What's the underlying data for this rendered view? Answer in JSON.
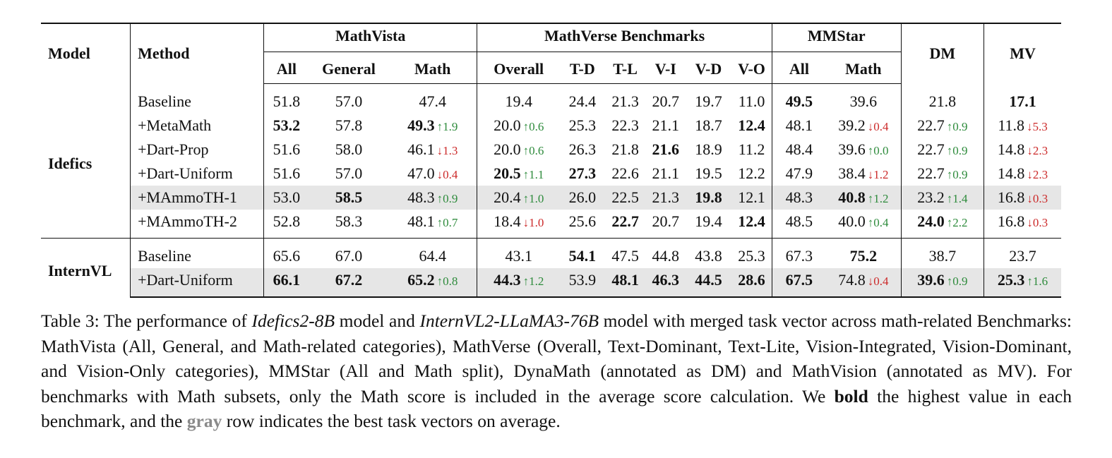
{
  "table": {
    "header": {
      "model": "Model",
      "method": "Method",
      "groups": [
        {
          "name": "MathVista",
          "cols": [
            "All",
            "General",
            "Math"
          ]
        },
        {
          "name": "MathVerse Benchmarks",
          "cols": [
            "Overall",
            "T-D",
            "T-L",
            "V-I",
            "V-D",
            "V-O"
          ]
        },
        {
          "name": "MMStar",
          "cols": [
            "All",
            "Math"
          ]
        },
        {
          "name": "DM",
          "cols": [
            ""
          ]
        },
        {
          "name": "MV",
          "cols": [
            ""
          ]
        }
      ]
    },
    "groups": [
      {
        "model": "Idefics",
        "rows": [
          {
            "method": "Baseline",
            "gray": false,
            "cells": [
              {
                "v": "51.8"
              },
              {
                "v": "57.0"
              },
              {
                "v": "47.4"
              },
              {
                "v": "19.4"
              },
              {
                "v": "24.4"
              },
              {
                "v": "21.3"
              },
              {
                "v": "20.7"
              },
              {
                "v": "19.7"
              },
              {
                "v": "11.0"
              },
              {
                "v": "49.5",
                "b": true
              },
              {
                "v": "39.6"
              },
              {
                "v": "21.8"
              },
              {
                "v": "17.1",
                "b": true
              }
            ]
          },
          {
            "method": "+MetaMath",
            "gray": false,
            "cells": [
              {
                "v": "53.2",
                "b": true
              },
              {
                "v": "57.8"
              },
              {
                "v": "49.3",
                "b": true,
                "d": "↑1.9",
                "dir": "up"
              },
              {
                "v": "20.0",
                "d": "↑0.6",
                "dir": "up"
              },
              {
                "v": "25.3"
              },
              {
                "v": "22.3"
              },
              {
                "v": "21.1"
              },
              {
                "v": "18.7"
              },
              {
                "v": "12.4",
                "b": true
              },
              {
                "v": "48.1"
              },
              {
                "v": "39.2",
                "d": "↓0.4",
                "dir": "down"
              },
              {
                "v": "22.7",
                "d": "↑0.9",
                "dir": "up"
              },
              {
                "v": "11.8",
                "d": "↓5.3",
                "dir": "down"
              }
            ]
          },
          {
            "method": "+Dart-Prop",
            "gray": false,
            "cells": [
              {
                "v": "51.6"
              },
              {
                "v": "58.0"
              },
              {
                "v": "46.1",
                "d": "↓1.3",
                "dir": "down"
              },
              {
                "v": "20.0",
                "d": "↑0.6",
                "dir": "up"
              },
              {
                "v": "26.3"
              },
              {
                "v": "21.8"
              },
              {
                "v": "21.6",
                "b": true
              },
              {
                "v": "18.9"
              },
              {
                "v": "11.2"
              },
              {
                "v": "48.4"
              },
              {
                "v": "39.6",
                "d": "↑0.0",
                "dir": "up"
              },
              {
                "v": "22.7",
                "d": "↑0.9",
                "dir": "up"
              },
              {
                "v": "14.8",
                "d": "↓2.3",
                "dir": "down"
              }
            ]
          },
          {
            "method": "+Dart-Uniform",
            "gray": false,
            "cells": [
              {
                "v": "51.6"
              },
              {
                "v": "57.0"
              },
              {
                "v": "47.0",
                "d": "↓0.4",
                "dir": "down"
              },
              {
                "v": "20.5",
                "b": true,
                "d": "↑1.1",
                "dir": "up"
              },
              {
                "v": "27.3",
                "b": true
              },
              {
                "v": "22.6"
              },
              {
                "v": "21.1"
              },
              {
                "v": "19.5"
              },
              {
                "v": "12.2"
              },
              {
                "v": "47.9"
              },
              {
                "v": "38.4",
                "d": "↓1.2",
                "dir": "down"
              },
              {
                "v": "22.7",
                "d": "↑0.9",
                "dir": "up"
              },
              {
                "v": "14.8",
                "d": "↓2.3",
                "dir": "down"
              }
            ]
          },
          {
            "method": "+MAmmoTH-1",
            "gray": true,
            "cells": [
              {
                "v": "53.0"
              },
              {
                "v": "58.5",
                "b": true
              },
              {
                "v": "48.3",
                "d": "↑0.9",
                "dir": "up"
              },
              {
                "v": "20.4",
                "d": "↑1.0",
                "dir": "up"
              },
              {
                "v": "26.0"
              },
              {
                "v": "22.5"
              },
              {
                "v": "21.3"
              },
              {
                "v": "19.8",
                "b": true
              },
              {
                "v": "12.1"
              },
              {
                "v": "48.3"
              },
              {
                "v": "40.8",
                "b": true,
                "d": "↑1.2",
                "dir": "up"
              },
              {
                "v": "23.2",
                "d": "↑1.4",
                "dir": "up"
              },
              {
                "v": "16.8",
                "d": "↓0.3",
                "dir": "down"
              }
            ]
          },
          {
            "method": "+MAmmoTH-2",
            "gray": false,
            "cells": [
              {
                "v": "52.8"
              },
              {
                "v": "58.3"
              },
              {
                "v": "48.1",
                "d": "↑0.7",
                "dir": "up"
              },
              {
                "v": "18.4",
                "d": "↓1.0",
                "dir": "down"
              },
              {
                "v": "25.6"
              },
              {
                "v": "22.7",
                "b": true
              },
              {
                "v": "20.7"
              },
              {
                "v": "19.4"
              },
              {
                "v": "12.4",
                "b": true
              },
              {
                "v": "48.5"
              },
              {
                "v": "40.0",
                "d": "↑0.4",
                "dir": "up"
              },
              {
                "v": "24.0",
                "b": true,
                "d": "↑2.2",
                "dir": "up"
              },
              {
                "v": "16.8",
                "d": "↓0.3",
                "dir": "down"
              }
            ]
          }
        ]
      },
      {
        "model": "InternVL",
        "rows": [
          {
            "method": "Baseline",
            "gray": false,
            "cells": [
              {
                "v": "65.6"
              },
              {
                "v": "67.0"
              },
              {
                "v": "64.4"
              },
              {
                "v": "43.1"
              },
              {
                "v": "54.1",
                "b": true
              },
              {
                "v": "47.5"
              },
              {
                "v": "44.8"
              },
              {
                "v": "43.8"
              },
              {
                "v": "25.3"
              },
              {
                "v": "67.3"
              },
              {
                "v": "75.2",
                "b": true
              },
              {
                "v": "38.7"
              },
              {
                "v": "23.7"
              }
            ]
          },
          {
            "method": "+Dart-Uniform",
            "gray": true,
            "cells": [
              {
                "v": "66.1",
                "b": true
              },
              {
                "v": "67.2",
                "b": true
              },
              {
                "v": "65.2",
                "b": true,
                "d": "↑0.8",
                "dir": "up"
              },
              {
                "v": "44.3",
                "b": true,
                "d": "↑1.2",
                "dir": "up"
              },
              {
                "v": "53.9"
              },
              {
                "v": "48.1",
                "b": true
              },
              {
                "v": "46.3",
                "b": true
              },
              {
                "v": "44.5",
                "b": true
              },
              {
                "v": "28.6",
                "b": true
              },
              {
                "v": "67.5",
                "b": true
              },
              {
                "v": "74.8",
                "d": "↓0.4",
                "dir": "down"
              },
              {
                "v": "39.6",
                "b": true,
                "d": "↑0.9",
                "dir": "up"
              },
              {
                "v": "25.3",
                "b": true,
                "d": "↑1.6",
                "dir": "up"
              }
            ]
          }
        ]
      }
    ]
  },
  "caption": {
    "p1": "Table 3: The performance of ",
    "m1": "Idefics2-8B",
    "p2": " model and ",
    "m2": "InternVL2-LLaMA3-76B",
    "p3": " model with merged task vector across math-related Benchmarks: MathVista (All, General, and Math-related categories), MathVerse (Overall, Text-Dominant, Text-Lite, Vision-Integrated, Vision-Dominant, and Vision-Only categories), MMStar (All and Math split), DynaMath (annotated as DM) and MathVision (annotated as MV). For benchmarks with Math subsets, only the Math score is included in the average score calculation. We ",
    "bold": "bold",
    "p4": " the highest value in each benchmark, and the ",
    "gray": "gray",
    "p5": " row indicates the best task vectors on average."
  },
  "colors": {
    "up": "#2e8b3c",
    "down": "#cc2a2a",
    "gray_row": "#e6e6e6",
    "gray_word": "#8a8a8a"
  }
}
